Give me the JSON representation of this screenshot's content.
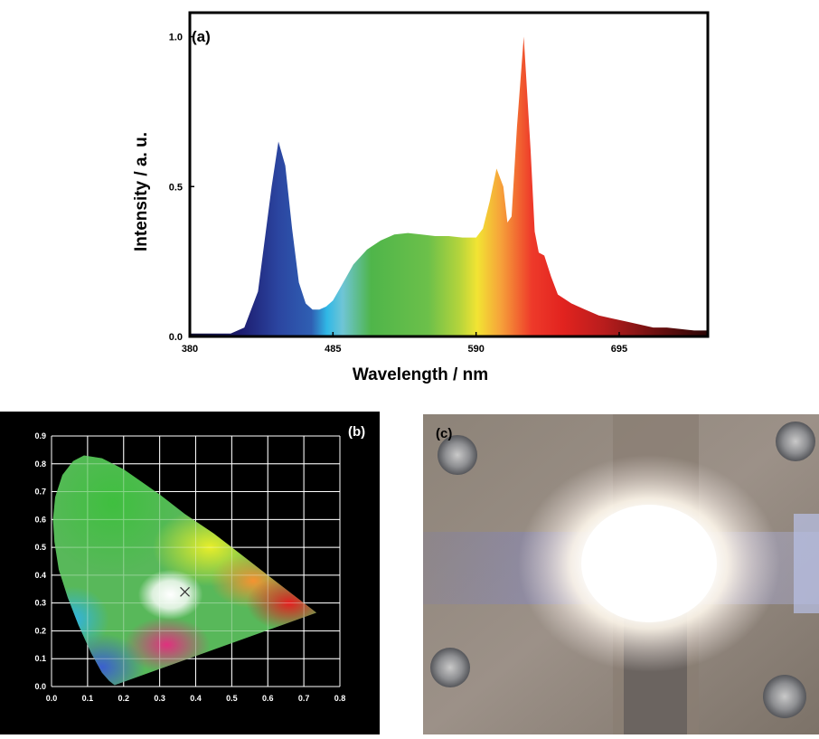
{
  "chart_data": [
    {
      "type": "area",
      "panel_label": "(a)",
      "xlabel": "Wavelength / nm",
      "ylabel": "Intensity / a. u.",
      "xlim": [
        380,
        760
      ],
      "ylim": [
        0,
        1.08
      ],
      "x_ticks": [
        "380",
        "485",
        "590",
        "695"
      ],
      "y_ticks": [
        "0.0",
        "0.5",
        "1.0"
      ],
      "fill": "visible-spectrum gradient",
      "series": [
        {
          "x": [
            380,
            390,
            400,
            410,
            420,
            430,
            440,
            445,
            450,
            455,
            460,
            465,
            470,
            475,
            480,
            485,
            490,
            500,
            510,
            520,
            530,
            540,
            550,
            560,
            570,
            580,
            590,
            595,
            600,
            605,
            610,
            613,
            616,
            620,
            625,
            630,
            633,
            636,
            640,
            645,
            650,
            660,
            670,
            680,
            690,
            700,
            710,
            720,
            730,
            740,
            750,
            760
          ],
          "y": [
            0.01,
            0.01,
            0.01,
            0.01,
            0.03,
            0.15,
            0.5,
            0.65,
            0.57,
            0.36,
            0.18,
            0.11,
            0.09,
            0.09,
            0.1,
            0.12,
            0.16,
            0.24,
            0.29,
            0.32,
            0.34,
            0.345,
            0.34,
            0.335,
            0.335,
            0.33,
            0.33,
            0.36,
            0.45,
            0.56,
            0.5,
            0.38,
            0.4,
            0.7,
            1.0,
            0.62,
            0.35,
            0.28,
            0.27,
            0.2,
            0.14,
            0.11,
            0.09,
            0.07,
            0.06,
            0.05,
            0.04,
            0.03,
            0.03,
            0.025,
            0.02,
            0.02
          ]
        }
      ]
    },
    {
      "type": "scatter",
      "panel_label": "(b)",
      "title": "",
      "xlim": [
        0.0,
        0.8
      ],
      "ylim": [
        0.0,
        0.9
      ],
      "x_ticks": [
        "0.0",
        "0.1",
        "0.2",
        "0.3",
        "0.4",
        "0.5",
        "0.6",
        "0.7",
        "0.8"
      ],
      "y_ticks": [
        "0.0",
        "0.1",
        "0.2",
        "0.3",
        "0.4",
        "0.5",
        "0.6",
        "0.7",
        "0.8",
        "0.9"
      ],
      "grid": true,
      "background": "CIE 1931 chromaticity diagram",
      "locus": {
        "x": [
          0.175,
          0.16,
          0.14,
          0.11,
          0.075,
          0.045,
          0.02,
          0.008,
          0.004,
          0.01,
          0.03,
          0.06,
          0.09,
          0.14,
          0.2,
          0.3,
          0.37,
          0.45,
          0.53,
          0.61,
          0.68,
          0.735
        ],
        "y": [
          0.005,
          0.02,
          0.05,
          0.12,
          0.22,
          0.32,
          0.42,
          0.52,
          0.6,
          0.68,
          0.76,
          0.81,
          0.83,
          0.82,
          0.78,
          0.69,
          0.62,
          0.55,
          0.47,
          0.39,
          0.32,
          0.265
        ]
      },
      "point": {
        "x": 0.37,
        "y": 0.34,
        "marker": "x"
      }
    }
  ],
  "panel_c": {
    "label": "(c)",
    "description_icon": "led-photo"
  }
}
